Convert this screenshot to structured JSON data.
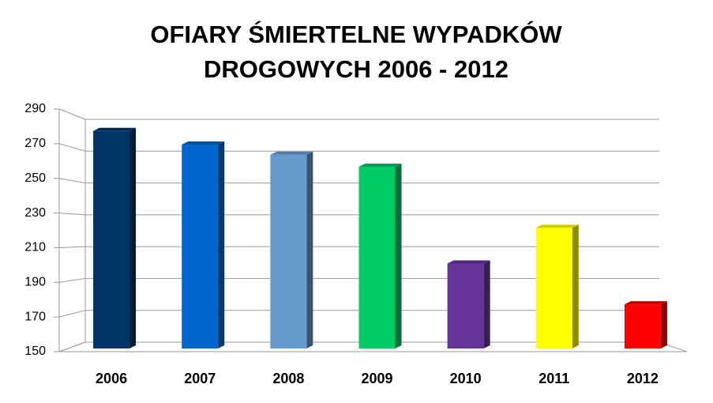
{
  "chart_data": {
    "type": "bar",
    "title": "OFIARY ŚMIERTELNE WYPADKÓW DROGOWYCH 2006 - 2012",
    "categories": [
      "2006",
      "2007",
      "2008",
      "2009",
      "2010",
      "2011",
      "2012"
    ],
    "values": [
      278,
      270,
      264,
      257,
      200,
      221,
      176
    ],
    "colors": [
      "#003366",
      "#0066cc",
      "#6699cc",
      "#00cc66",
      "#663399",
      "#ffff00",
      "#ff0000"
    ],
    "ylim": [
      150,
      290
    ],
    "yticks": [
      150,
      170,
      190,
      210,
      230,
      250,
      270,
      290
    ],
    "grid": true
  }
}
